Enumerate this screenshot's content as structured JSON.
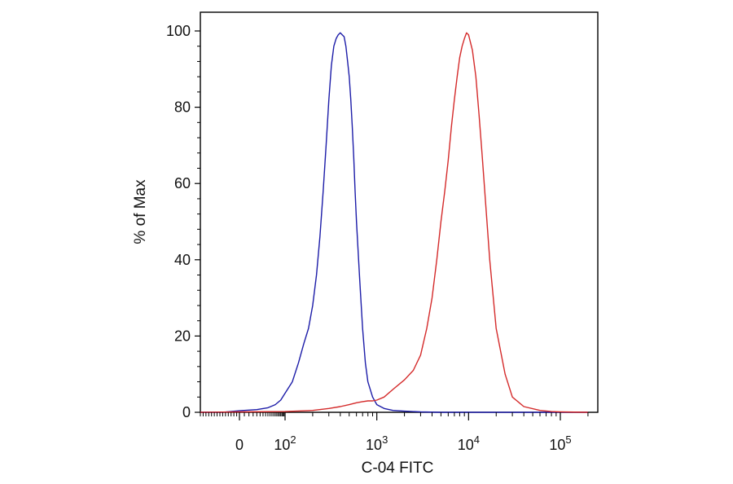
{
  "chart_data": {
    "type": "line",
    "title": "",
    "xlabel": "C-04 FITC",
    "ylabel": "% of Max",
    "x_scale": "biexponential",
    "xlim": [
      -70,
      200000
    ],
    "ylim": [
      0,
      105
    ],
    "grid": false,
    "x_ticks": [
      {
        "value": 0,
        "base": "0",
        "exp": ""
      },
      {
        "value": 100,
        "base": "10",
        "exp": "2"
      },
      {
        "value": 1000,
        "base": "10",
        "exp": "3"
      },
      {
        "value": 10000,
        "base": "10",
        "exp": "4"
      },
      {
        "value": 100000,
        "base": "10",
        "exp": "5"
      }
    ],
    "y_ticks": [
      "0",
      "20",
      "40",
      "60",
      "80",
      "100"
    ],
    "series": [
      {
        "color": "#1c1ca8",
        "x": [
          -70,
          -30,
          0,
          20,
          40,
          60,
          80,
          100,
          120,
          140,
          160,
          180,
          200,
          220,
          240,
          260,
          280,
          300,
          320,
          340,
          360,
          380,
          400,
          420,
          440,
          460,
          480,
          500,
          520,
          540,
          560,
          580,
          600,
          650,
          700,
          750,
          800,
          900,
          1000,
          1200,
          1500,
          2000,
          3000,
          5000,
          10000,
          50000,
          200000
        ],
        "y": [
          0,
          0,
          0.4,
          0.7,
          1.2,
          2,
          3.2,
          5,
          8,
          13,
          18,
          22,
          28,
          36,
          46,
          58,
          70,
          82,
          91,
          96,
          98,
          99,
          99.5,
          99,
          98.5,
          96,
          92,
          88,
          82,
          75,
          67,
          58,
          50,
          35,
          22,
          13,
          8,
          4,
          2,
          1,
          0.5,
          0.3,
          0.1,
          0,
          0,
          0,
          0
        ]
      },
      {
        "color": "#d42a2a",
        "x": [
          -70,
          0,
          100,
          200,
          300,
          400,
          500,
          600,
          700,
          800,
          900,
          1000,
          1200,
          1500,
          2000,
          2500,
          3000,
          3500,
          4000,
          4500,
          5000,
          5500,
          6000,
          6500,
          7000,
          7500,
          8000,
          8500,
          9000,
          9500,
          10000,
          11000,
          12000,
          13000,
          14000,
          15000,
          17000,
          20000,
          25000,
          30000,
          40000,
          60000,
          80000,
          100000,
          200000
        ],
        "y": [
          0,
          0.1,
          0.2,
          0.5,
          1,
          1.5,
          2,
          2.5,
          2.8,
          3,
          3,
          3.2,
          4,
          6,
          8.5,
          11,
          15,
          22,
          30,
          40,
          50,
          58,
          66,
          75,
          82,
          88,
          93,
          96,
          98,
          99.5,
          99,
          95,
          88,
          78,
          68,
          58,
          40,
          22,
          10,
          4,
          1.5,
          0.5,
          0.2,
          0.1,
          0
        ]
      }
    ]
  }
}
